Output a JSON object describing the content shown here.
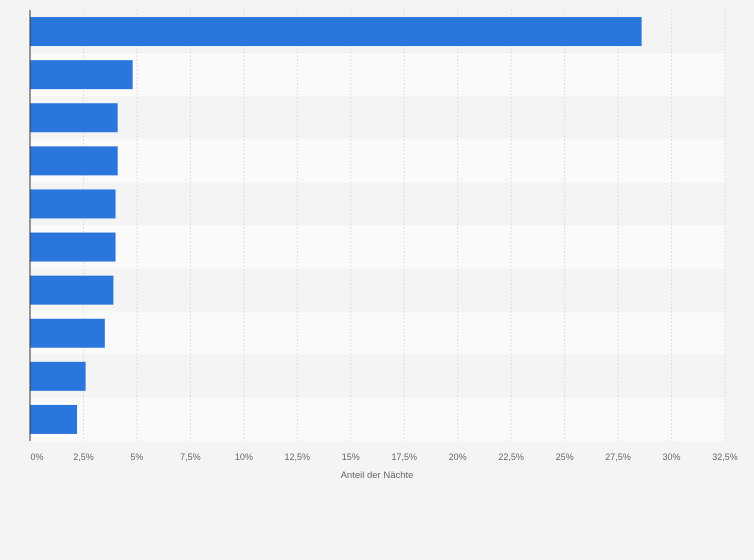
{
  "chart_data": {
    "type": "bar",
    "orientation": "horizontal",
    "categories": [
      "",
      "",
      "",
      "",
      "",
      "",
      "",
      "",
      "",
      ""
    ],
    "values": [
      28.6,
      4.8,
      4.1,
      4.1,
      4.0,
      4.0,
      3.9,
      3.5,
      2.6,
      2.2
    ],
    "xlim": [
      0,
      32.5
    ],
    "xticks": [
      "0%",
      "2,5%",
      "5%",
      "7,5%",
      "10%",
      "12,5%",
      "15%",
      "17,5%",
      "20%",
      "22,5%",
      "25%",
      "27,5%",
      "30%",
      "32,5%"
    ],
    "xlabel": "Anteil der Nächte",
    "ylabel": "",
    "grid": true,
    "bar_color": "#2a76dd",
    "row_colors": [
      "#f4f4f4",
      "#fafafa"
    ],
    "background": "#f4f4f4"
  }
}
